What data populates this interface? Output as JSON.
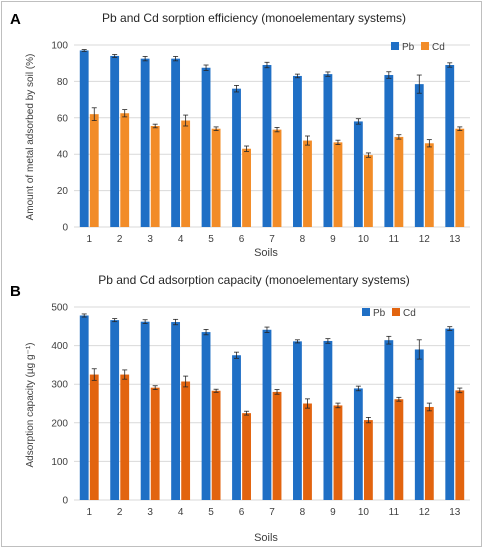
{
  "chart_data": [
    {
      "panel": "A",
      "type": "bar",
      "title": "Pb and Cd sorption efficiency (monoelementary systems)",
      "xlabel": "Soils",
      "ylabel": "Amount of metal adsorbed by soil (%)",
      "ylim": [
        0,
        100
      ],
      "yticks": [
        0,
        20,
        40,
        60,
        80,
        100
      ],
      "grid": true,
      "legend": "top-right",
      "categories": [
        "1",
        "2",
        "3",
        "4",
        "5",
        "6",
        "7",
        "8",
        "9",
        "10",
        "11",
        "12",
        "13"
      ],
      "series": [
        {
          "name": "Pb",
          "color": "#1f6fc5",
          "values": [
            97,
            94,
            92.5,
            92.5,
            87.5,
            76,
            89,
            83,
            84,
            58,
            83.5,
            78.5,
            89
          ],
          "errors": [
            0.5,
            0.8,
            1.2,
            1.2,
            1.5,
            1.8,
            1.5,
            1.0,
            1.2,
            1.5,
            1.8,
            5.0,
            1.2
          ]
        },
        {
          "name": "Cd",
          "color": "#f28c28",
          "values": [
            62,
            62.5,
            55.5,
            58.5,
            54,
            43,
            53.5,
            47.5,
            46.5,
            39.5,
            49.5,
            46,
            54
          ],
          "errors": [
            3.5,
            2.0,
            1.0,
            3.0,
            1.0,
            1.5,
            1.2,
            2.5,
            1.2,
            1.2,
            1.2,
            2.0,
            1.0
          ]
        }
      ]
    },
    {
      "panel": "B",
      "type": "bar",
      "title": "Pb and Cd adsorption capacity (monoelementary systems)",
      "xlabel": "Soils",
      "ylabel": "Adsorption capacity (µg g⁻¹)",
      "ylim": [
        0,
        500
      ],
      "yticks": [
        0,
        100,
        200,
        300,
        400,
        500
      ],
      "grid": true,
      "legend": "top-right",
      "categories": [
        "1",
        "2",
        "3",
        "4",
        "5",
        "6",
        "7",
        "8",
        "9",
        "10",
        "11",
        "12",
        "13"
      ],
      "series": [
        {
          "name": "Pb",
          "color": "#1f6fc5",
          "values": [
            478,
            466,
            462,
            461,
            435,
            375,
            441,
            411,
            412,
            289,
            414,
            390,
            444
          ],
          "errors": [
            4,
            4,
            5,
            7,
            7,
            8,
            7,
            4,
            6,
            6,
            10,
            25,
            5
          ]
        },
        {
          "name": "Cd",
          "color": "#e2640f",
          "values": [
            325,
            325,
            291,
            307,
            283,
            225,
            280,
            250,
            245,
            207,
            261,
            241,
            284
          ],
          "errors": [
            15,
            12,
            5,
            14,
            4,
            5,
            6,
            12,
            6,
            7,
            5,
            10,
            6
          ]
        }
      ]
    }
  ]
}
